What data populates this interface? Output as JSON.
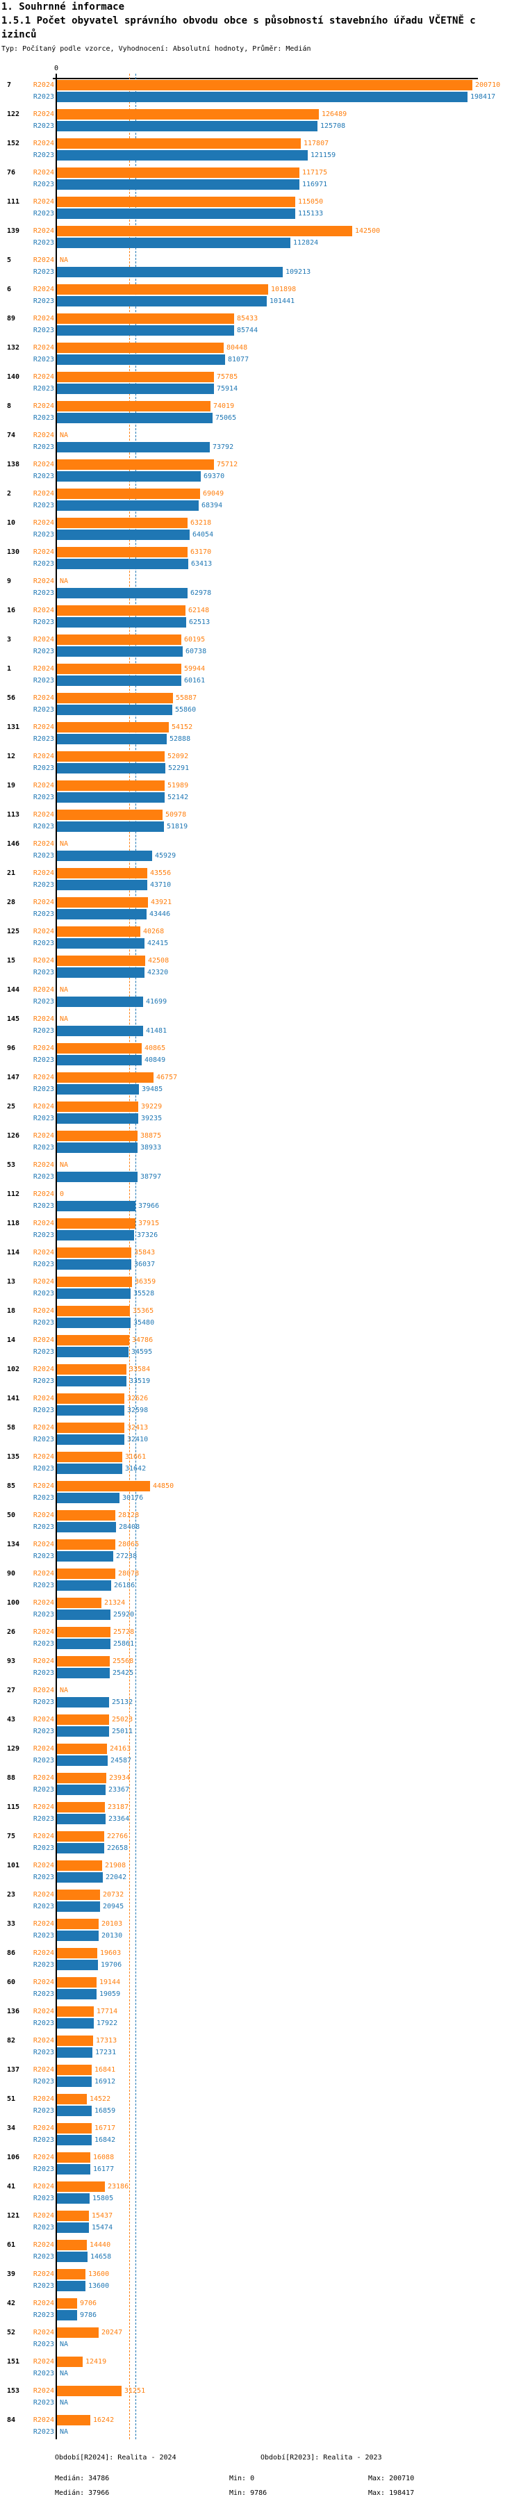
{
  "header": {
    "title_line1": "1. Souhrnné informace",
    "title_line2": "1.5.1 Počet obyvatel správního obvodu obce s působností stavebního úřadu VČETNĚ c",
    "title_line3": "izinců",
    "subtitle": "Typ: Počítaný podle vzorce, Vyhodnocení: Absolutní hodnoty, Průměr: Medián"
  },
  "chart_data": {
    "type": "bar",
    "orientation": "horizontal",
    "title": "1.5.1 Počet obyvatel správního obvodu obce s působností stavebního úřadu VČETNĚ cizinců",
    "axis": {
      "zero_label": "0",
      "max_value": 200710,
      "grid": false
    },
    "na_label": "NA",
    "colors": {
      "r2024": "#ff7f0e",
      "r2023": "#1f77b4",
      "axis": "#000000"
    },
    "series_names": [
      "R2024",
      "R2023"
    ],
    "reference_lines": [
      {
        "series": "R2024",
        "label": "Medián",
        "value": 34786
      },
      {
        "series": "R2023",
        "label": "Medián",
        "value": 37966
      }
    ],
    "groups": [
      {
        "id": "7",
        "r2024": 200710,
        "r2023": 198417
      },
      {
        "id": "122",
        "r2024": 126489,
        "r2023": 125708
      },
      {
        "id": "152",
        "r2024": 117807,
        "r2023": 121159
      },
      {
        "id": "76",
        "r2024": 117175,
        "r2023": 116971
      },
      {
        "id": "111",
        "r2024": 115050,
        "r2023": 115133
      },
      {
        "id": "139",
        "r2024": 142500,
        "r2023": 112824
      },
      {
        "id": "5",
        "r2024": null,
        "r2023": 109213
      },
      {
        "id": "6",
        "r2024": 101898,
        "r2023": 101441
      },
      {
        "id": "89",
        "r2024": 85433,
        "r2023": 85744
      },
      {
        "id": "132",
        "r2024": 80448,
        "r2023": 81077
      },
      {
        "id": "140",
        "r2024": 75785,
        "r2023": 75914
      },
      {
        "id": "8",
        "r2024": 74019,
        "r2023": 75065
      },
      {
        "id": "74",
        "r2024": null,
        "r2023": 73792
      },
      {
        "id": "138",
        "r2024": 75712,
        "r2023": 69370
      },
      {
        "id": "2",
        "r2024": 69049,
        "r2023": 68394
      },
      {
        "id": "10",
        "r2024": 63218,
        "r2023": 64054
      },
      {
        "id": "130",
        "r2024": 63170,
        "r2023": 63413
      },
      {
        "id": "9",
        "r2024": null,
        "r2023": 62978
      },
      {
        "id": "16",
        "r2024": 62148,
        "r2023": 62513
      },
      {
        "id": "3",
        "r2024": 60195,
        "r2023": 60738
      },
      {
        "id": "1",
        "r2024": 59944,
        "r2023": 60161
      },
      {
        "id": "56",
        "r2024": 55887,
        "r2023": 55860
      },
      {
        "id": "131",
        "r2024": 54152,
        "r2023": 52888
      },
      {
        "id": "12",
        "r2024": 52092,
        "r2023": 52291
      },
      {
        "id": "19",
        "r2024": 51989,
        "r2023": 52142
      },
      {
        "id": "113",
        "r2024": 50978,
        "r2023": 51819
      },
      {
        "id": "146",
        "r2024": null,
        "r2023": 45929
      },
      {
        "id": "21",
        "r2024": 43556,
        "r2023": 43710
      },
      {
        "id": "28",
        "r2024": 43921,
        "r2023": 43446
      },
      {
        "id": "125",
        "r2024": 40268,
        "r2023": 42415
      },
      {
        "id": "15",
        "r2024": 42508,
        "r2023": 42320
      },
      {
        "id": "144",
        "r2024": null,
        "r2023": 41699
      },
      {
        "id": "145",
        "r2024": null,
        "r2023": 41481
      },
      {
        "id": "96",
        "r2024": 40865,
        "r2023": 40849
      },
      {
        "id": "147",
        "r2024": 46757,
        "r2023": 39485
      },
      {
        "id": "25",
        "r2024": 39229,
        "r2023": 39235
      },
      {
        "id": "126",
        "r2024": 38875,
        "r2023": 38933
      },
      {
        "id": "53",
        "r2024": null,
        "r2023": 38797
      },
      {
        "id": "112",
        "r2024": 0,
        "r2023": 37966
      },
      {
        "id": "118",
        "r2024": 37915,
        "r2023": 37326
      },
      {
        "id": "114",
        "r2024": 35843,
        "r2023": 36037
      },
      {
        "id": "13",
        "r2024": 36359,
        "r2023": 35528
      },
      {
        "id": "18",
        "r2024": 35365,
        "r2023": 35480
      },
      {
        "id": "14",
        "r2024": 34786,
        "r2023": 34595
      },
      {
        "id": "102",
        "r2024": 33584,
        "r2023": 33519
      },
      {
        "id": "141",
        "r2024": 32626,
        "r2023": 32598
      },
      {
        "id": "58",
        "r2024": 32413,
        "r2023": 32410
      },
      {
        "id": "135",
        "r2024": 31661,
        "r2023": 31642
      },
      {
        "id": "85",
        "r2024": 44850,
        "r2023": 30176
      },
      {
        "id": "50",
        "r2024": 28128,
        "r2023": 28408
      },
      {
        "id": "134",
        "r2024": 28065,
        "r2023": 27238
      },
      {
        "id": "90",
        "r2024": 28078,
        "r2023": 26186
      },
      {
        "id": "100",
        "r2024": 21324,
        "r2023": 25920
      },
      {
        "id": "26",
        "r2024": 25728,
        "r2023": 25861
      },
      {
        "id": "93",
        "r2024": 25568,
        "r2023": 25425
      },
      {
        "id": "27",
        "r2024": null,
        "r2023": 25132
      },
      {
        "id": "43",
        "r2024": 25023,
        "r2023": 25011
      },
      {
        "id": "129",
        "r2024": 24163,
        "r2023": 24587
      },
      {
        "id": "88",
        "r2024": 23934,
        "r2023": 23367
      },
      {
        "id": "115",
        "r2024": 23187,
        "r2023": 23364
      },
      {
        "id": "75",
        "r2024": 22766,
        "r2023": 22658
      },
      {
        "id": "101",
        "r2024": 21908,
        "r2023": 22042
      },
      {
        "id": "23",
        "r2024": 20732,
        "r2023": 20945
      },
      {
        "id": "33",
        "r2024": 20103,
        "r2023": 20130
      },
      {
        "id": "86",
        "r2024": 19603,
        "r2023": 19706
      },
      {
        "id": "60",
        "r2024": 19144,
        "r2023": 19059
      },
      {
        "id": "136",
        "r2024": 17714,
        "r2023": 17922
      },
      {
        "id": "82",
        "r2024": 17313,
        "r2023": 17231
      },
      {
        "id": "137",
        "r2024": 16841,
        "r2023": 16912
      },
      {
        "id": "51",
        "r2024": 14522,
        "r2023": 16859
      },
      {
        "id": "34",
        "r2024": 16717,
        "r2023": 16842
      },
      {
        "id": "106",
        "r2024": 16088,
        "r2023": 16177
      },
      {
        "id": "41",
        "r2024": 23186,
        "r2023": 15805
      },
      {
        "id": "121",
        "r2024": 15437,
        "r2023": 15474
      },
      {
        "id": "61",
        "r2024": 14440,
        "r2023": 14658
      },
      {
        "id": "39",
        "r2024": 13600,
        "r2023": 13600
      },
      {
        "id": "42",
        "r2024": 9706,
        "r2023": 9786
      },
      {
        "id": "52",
        "r2024": 20247,
        "r2023": null
      },
      {
        "id": "151",
        "r2024": 12419,
        "r2023": null
      },
      {
        "id": "153",
        "r2024": 31251,
        "r2023": null
      },
      {
        "id": "84",
        "r2024": 16242,
        "r2023": null
      }
    ]
  },
  "legend": {
    "r2024": {
      "title": "Období[R2024]: Realita - 2024",
      "median_label": "Medián: 34786",
      "min_label": "Min: 0",
      "max_label": "Max: 200710"
    },
    "r2023": {
      "title": "Období[R2023]: Realita - 2023",
      "median_label": "Medián: 37966",
      "min_label": "Min: 9786",
      "max_label": "Max: 198417"
    }
  }
}
